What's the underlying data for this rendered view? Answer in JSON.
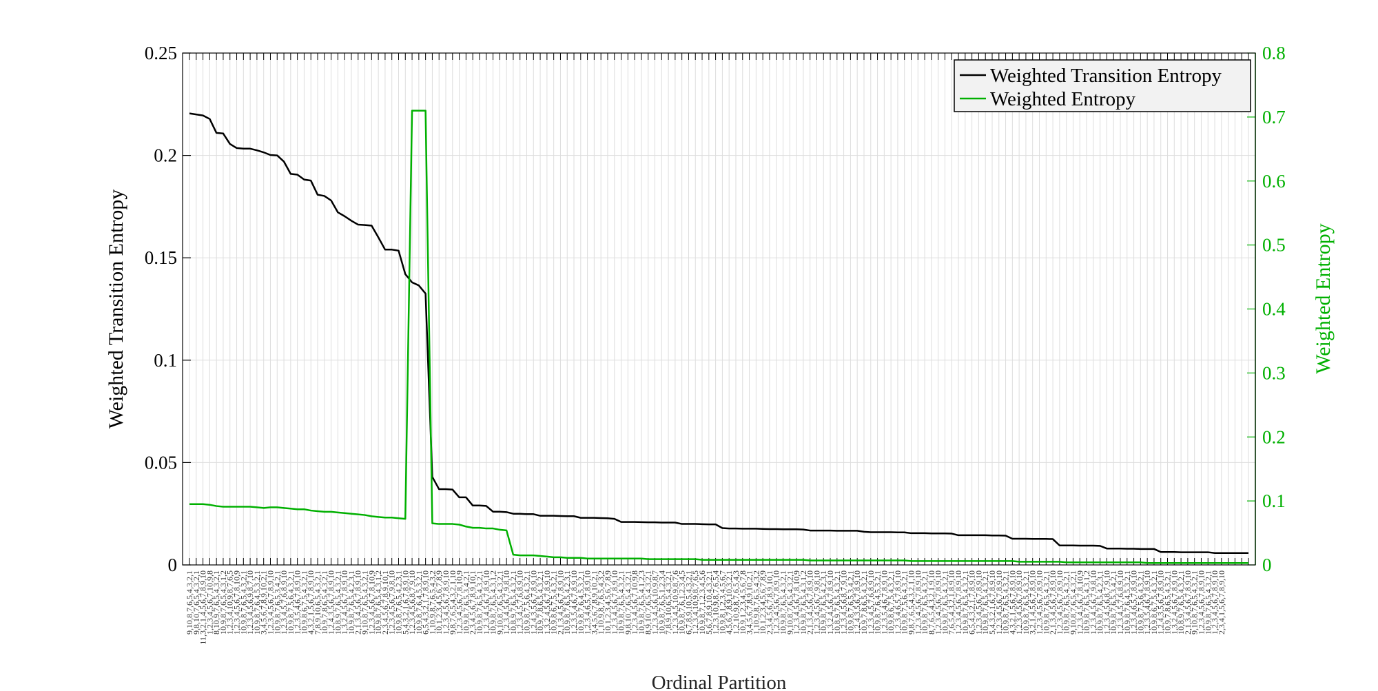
{
  "chart_data": {
    "type": "line",
    "title": "",
    "xlabel": "Ordinal Partition",
    "ylabel_left": "Weighted Transition Entropy",
    "ylabel_right": "Weighted Entropy",
    "y_left_range": [
      0,
      0.25
    ],
    "y_right_range": [
      0,
      0.8
    ],
    "y_left_ticks": [
      "0",
      "0.05",
      "0.1",
      "0.15",
      "0.2",
      "0.25"
    ],
    "y_right_ticks": [
      "0",
      "0.1",
      "0.2",
      "0.3",
      "0.4",
      "0.5",
      "0.6",
      "0.7",
      "0.8"
    ],
    "grid": true,
    "legend_position": "top-right",
    "colors": {
      "left_series": "#000000",
      "right_series": "#00b000",
      "grid": "#dddddd"
    },
    "series": [
      {
        "name": "Weighted Transition Entropy",
        "axis": "left",
        "values": [
          0.2205,
          0.22,
          0.2195,
          0.2178,
          0.211,
          0.2107,
          0.2056,
          0.2036,
          0.2033,
          0.2033,
          0.2025,
          0.2015,
          0.2002,
          0.2,
          0.197,
          0.191,
          0.1906,
          0.1882,
          0.1877,
          0.1808,
          0.1802,
          0.178,
          0.1722,
          0.1703,
          0.1681,
          0.1662,
          0.166,
          0.1657,
          0.16,
          0.154,
          0.154,
          0.1535,
          0.142,
          0.138,
          0.1365,
          0.1325,
          0.043,
          0.037,
          0.037,
          0.0368,
          0.033,
          0.033,
          0.029,
          0.029,
          0.0288,
          0.026,
          0.026,
          0.0258,
          0.025,
          0.025,
          0.0248,
          0.0248,
          0.024,
          0.024,
          0.024,
          0.0239,
          0.0238,
          0.0238,
          0.023,
          0.023,
          0.023,
          0.0229,
          0.0228,
          0.0225,
          0.021,
          0.021,
          0.021,
          0.0209,
          0.0208,
          0.0208,
          0.0207,
          0.0207,
          0.0207,
          0.02,
          0.02,
          0.02,
          0.0199,
          0.0198,
          0.0198,
          0.018,
          0.0178,
          0.0178,
          0.0177,
          0.0177,
          0.0177,
          0.0176,
          0.0175,
          0.0175,
          0.0174,
          0.0174,
          0.0174,
          0.0173,
          0.0168,
          0.0168,
          0.0168,
          0.0168,
          0.0167,
          0.0167,
          0.0167,
          0.0167,
          0.0162,
          0.016,
          0.016,
          0.016,
          0.016,
          0.0159,
          0.0159,
          0.0155,
          0.0155,
          0.0155,
          0.0154,
          0.0154,
          0.0154,
          0.0153,
          0.0145,
          0.0145,
          0.0145,
          0.0145,
          0.0145,
          0.0144,
          0.0144,
          0.0143,
          0.0128,
          0.0128,
          0.0128,
          0.0127,
          0.0127,
          0.0127,
          0.0126,
          0.0095,
          0.0095,
          0.0095,
          0.0094,
          0.0094,
          0.0094,
          0.0093,
          0.008,
          0.008,
          0.008,
          0.0079,
          0.0079,
          0.0078,
          0.0078,
          0.0078,
          0.0063,
          0.0063,
          0.0063,
          0.0062,
          0.0062,
          0.0062,
          0.0062,
          0.0062,
          0.0058,
          0.0058,
          0.0058,
          0.0058,
          0.0058,
          0.0058
        ]
      },
      {
        "name": "Weighted Entropy",
        "axis": "right",
        "values": [
          0.095,
          0.095,
          0.095,
          0.094,
          0.092,
          0.091,
          0.091,
          0.091,
          0.091,
          0.091,
          0.09,
          0.089,
          0.09,
          0.09,
          0.089,
          0.088,
          0.087,
          0.087,
          0.085,
          0.084,
          0.083,
          0.083,
          0.082,
          0.081,
          0.08,
          0.079,
          0.078,
          0.076,
          0.075,
          0.074,
          0.074,
          0.073,
          0.072,
          0.71,
          0.71,
          0.71,
          0.065,
          0.064,
          0.064,
          0.064,
          0.063,
          0.06,
          0.058,
          0.058,
          0.057,
          0.057,
          0.055,
          0.054,
          0.016,
          0.015,
          0.015,
          0.015,
          0.014,
          0.013,
          0.012,
          0.012,
          0.011,
          0.011,
          0.011,
          0.01,
          0.01,
          0.01,
          0.01,
          0.01,
          0.01,
          0.01,
          0.01,
          0.01,
          0.009,
          0.009,
          0.009,
          0.009,
          0.009,
          0.009,
          0.009,
          0.009,
          0.008,
          0.008,
          0.008,
          0.008,
          0.008,
          0.008,
          0.008,
          0.008,
          0.008,
          0.008,
          0.008,
          0.008,
          0.008,
          0.008,
          0.008,
          0.008,
          0.007,
          0.007,
          0.007,
          0.007,
          0.007,
          0.007,
          0.007,
          0.007,
          0.007,
          0.007,
          0.007,
          0.007,
          0.007,
          0.007,
          0.007,
          0.006,
          0.006,
          0.006,
          0.006,
          0.006,
          0.006,
          0.006,
          0.006,
          0.006,
          0.006,
          0.006,
          0.006,
          0.006,
          0.006,
          0.006,
          0.006,
          0.005,
          0.005,
          0.005,
          0.005,
          0.005,
          0.005,
          0.005,
          0.004,
          0.004,
          0.004,
          0.004,
          0.004,
          0.004,
          0.004,
          0.004,
          0.004,
          0.004,
          0.004,
          0.004,
          0.003,
          0.003,
          0.003,
          0.003,
          0.003,
          0.003,
          0.003,
          0.003,
          0.003,
          0.003,
          0.003,
          0.003,
          0.003,
          0.003,
          0.003,
          0.003
        ]
      }
    ],
    "x_tick_labels": [
      "9,10,8,7,6,5,4,3,2,1",
      "9,8,10,7,6,5,4,3,2,1",
      "11,3,2,1,4,5,6,7,8,9,10",
      "1,2,3,4,5,6,7,10,9,8",
      "8,10,9,7,6,5,4,3,2,1",
      "10,9,8,7,6,5,4,3,1,2",
      "1,2,3,4,10,9,8,7,6,5",
      "1,2,3,4,5,6,7,8,10,9",
      "10,9,8,7,6,5,4,3,2,1",
      "1,2,3,4,5,6,9,8,7,10",
      "10,9,8,7,6,4,5,3,2,1",
      "3,4,5,6,7,8,9,10,2,1",
      "1,2,3,4,5,6,7,8,9,10",
      "10,9,8,7,6,5,3,4,2,1",
      "1,2,3,4,5,7,6,8,9,10",
      "10,9,8,7,5,6,4,3,2,1",
      "1,2,3,5,4,6,7,8,9,10",
      "10,9,8,6,7,5,4,3,2,1",
      "4,3,2,1,5,6,7,8,9,10",
      "7,8,9,10,6,5,4,3,2,1",
      "10,9,7,8,6,5,4,3,2,1",
      "1,2,4,3,5,6,7,8,9,10",
      "10,8,9,7,6,5,4,3,2,1",
      "1,3,2,4,5,6,7,8,9,10",
      "10,9,8,7,6,5,4,2,3,1",
      "2,1,3,4,5,6,7,8,9,10",
      "9,10,8,7,6,5,4,3,2,1",
      "1,2,3,4,5,6,7,8,10,9",
      "10,9,8,7,6,5,4,3,1,2",
      "2,3,4,5,6,7,8,9,10,1",
      "1,2,3,4,5,6,7,9,8,10",
      "10,9,8,7,6,5,4,2,3,1",
      "5,4,3,2,1,6,7,8,9,10",
      "1,2,3,4,5,6,8,7,9,10",
      "10,9,8,7,6,4,5,3,2,1",
      "6,5,4,3,2,1,7,8,9,10",
      "1,10,9,8,7,6,5,4,3,2",
      "10,1,2,3,4,5,6,7,8,9",
      "1,2,3,4,5,6,7,8,9,10",
      "9,8,7,6,5,4,3,2,1,10",
      "1,2,3,4,5,6,7,8,10,9",
      "10,9,8,7,6,5,3,4,2,1",
      "2,3,4,5,6,7,8,9,10,1",
      "10,9,8,7,6,5,4,3,2,1",
      "1,2,3,4,5,6,7,8,9,10",
      "10,9,8,7,6,5,4,3,1,2",
      "9,10,8,7,6,5,4,3,2,1",
      "1,2,3,4,5,6,7,9,8,10",
      "10,8,9,7,6,5,4,3,2,1",
      "1,2,3,4,5,7,6,8,9,10",
      "10,9,8,7,5,6,4,3,2,1",
      "1,2,4,3,5,6,7,8,9,10",
      "10,9,7,8,6,5,4,3,2,1",
      "1,3,2,4,5,6,7,8,9,10",
      "10,9,8,6,7,5,4,3,2,1",
      "2,1,3,4,5,6,7,8,9,10",
      "10,9,8,7,6,5,4,2,3,1",
      "1,2,3,5,4,6,7,8,9,10",
      "10,9,8,7,6,4,5,3,2,1",
      "1,2,3,4,6,5,7,8,9,10",
      "3,4,5,6,7,8,9,10,2,1",
      "1,10,9,8,7,6,5,4,3,2",
      "10,1,2,3,4,5,6,7,8,9",
      "1,2,3,4,5,6,7,8,9,10",
      "10,9,8,7,6,5,4,3,2,1",
      "9,8,10,7,6,5,4,3,2,1",
      "1,2,3,4,5,6,7,10,9,8",
      "10,9,8,7,6,5,4,1,2,3",
      "8,9,10,7,6,5,4,3,2,1",
      "1,2,3,4,5,6,10,9,8,7",
      "10,9,8,7,6,5,1,2,3,4",
      "7,8,9,10,6,5,4,3,2,1",
      "1,2,3,4,5,10,9,8,7,6",
      "10,9,8,7,6,1,2,3,4,5",
      "6,7,8,9,10,5,4,3,2,1",
      "1,2,3,4,10,9,8,7,6,5",
      "10,9,8,7,1,2,3,4,5,6",
      "5,6,7,8,9,10,4,3,2,1",
      "1,2,3,10,9,8,7,6,5,4",
      "10,9,8,1,2,3,4,5,6,7",
      "4,5,6,7,8,9,10,3,2,1",
      "1,2,10,9,8,7,6,5,4,3",
      "10,9,1,2,3,4,5,6,7,8",
      "3,4,5,6,7,8,9,10,2,1",
      "1,10,9,8,7,6,5,4,3,2",
      "10,1,2,3,4,5,6,7,8,9",
      "2,3,4,5,6,7,8,9,10,1",
      "1,2,3,4,5,6,7,8,9,10",
      "10,9,8,7,6,5,4,3,2,1",
      "9,10,8,7,6,5,4,3,2,1",
      "1,2,3,4,5,6,7,8,10,9",
      "10,9,8,7,6,5,4,3,1,2",
      "2,1,3,4,5,6,7,8,9,10",
      "1,2,3,4,5,6,7,9,8,10",
      "10,9,8,7,6,5,4,2,3,1",
      "1,3,2,4,5,6,7,8,9,10",
      "10,8,9,7,6,5,4,3,2,1",
      "1,2,3,4,5,6,8,7,9,10",
      "10,9,8,7,6,5,3,4,2,1",
      "1,2,4,3,5,6,7,8,9,10",
      "10,9,7,8,6,5,4,3,2,1",
      "1,2,3,4,5,7,6,8,9,10",
      "10,9,8,7,6,4,5,3,2,1",
      "1,2,3,5,4,6,7,8,9,10",
      "10,9,8,6,7,5,4,3,2,1",
      "1,2,3,4,6,5,7,8,9,10",
      "10,9,8,7,5,6,4,3,2,1",
      "9,8,7,6,5,4,3,2,1,10",
      "1,2,3,4,5,6,7,8,9,10",
      "10,9,8,7,6,5,4,3,2,1",
      "8,7,6,5,4,3,2,1,9,10",
      "1,2,3,4,5,6,7,8,9,10",
      "10,9,8,7,6,5,4,3,2,1",
      "7,6,5,4,3,2,1,8,9,10",
      "1,2,3,4,5,6,7,8,9,10",
      "10,9,8,7,6,5,4,3,2,1",
      "6,5,4,3,2,1,7,8,9,10",
      "1,2,3,4,5,6,7,8,9,10",
      "10,9,8,7,6,5,4,3,2,1",
      "5,4,3,2,1,6,7,8,9,10",
      "1,2,3,4,5,6,7,8,9,10",
      "10,9,8,7,6,5,4,3,2,1",
      "4,3,2,1,5,6,7,8,9,10",
      "1,2,3,4,5,6,7,8,9,10",
      "10,9,8,7,6,5,4,3,2,1",
      "3,2,1,4,5,6,7,8,9,10",
      "1,2,3,4,5,6,7,8,9,10",
      "10,9,8,7,6,5,4,3,2,1",
      "2,1,3,4,5,6,7,8,9,10",
      "1,2,3,4,5,6,7,8,9,10",
      "10,9,8,7,6,5,4,3,2,1",
      "9,10,8,7,6,5,4,3,2,1",
      "1,2,3,4,5,6,7,8,10,9",
      "10,9,8,7,6,5,4,3,1,2",
      "1,2,3,4,5,6,7,9,8,10",
      "10,9,8,7,6,5,4,2,3,1",
      "1,2,3,4,5,6,8,7,9,10",
      "10,9,8,7,6,5,3,4,2,1",
      "1,2,3,4,5,7,6,8,9,10",
      "10,9,8,7,6,4,5,3,2,1",
      "1,2,3,4,6,5,7,8,9,10",
      "10,9,8,7,5,6,4,3,2,1",
      "1,2,3,5,4,6,7,8,9,10",
      "10,9,8,6,7,5,4,3,2,1",
      "1,2,4,3,5,6,7,8,9,10",
      "10,9,7,8,6,5,4,3,2,1",
      "1,3,2,4,5,6,7,8,9,10",
      "10,8,9,7,6,5,4,3,2,1",
      "2,1,3,4,5,6,7,8,9,10",
      "9,10,8,7,6,5,4,3,2,1",
      "1,2,3,4,5,6,7,8,9,10",
      "10,9,8,7,6,5,4,3,2,1",
      "1,2,3,4,5,6,7,8,9,10",
      "2,3,4,1,5,6,7,8,9,10"
    ]
  }
}
